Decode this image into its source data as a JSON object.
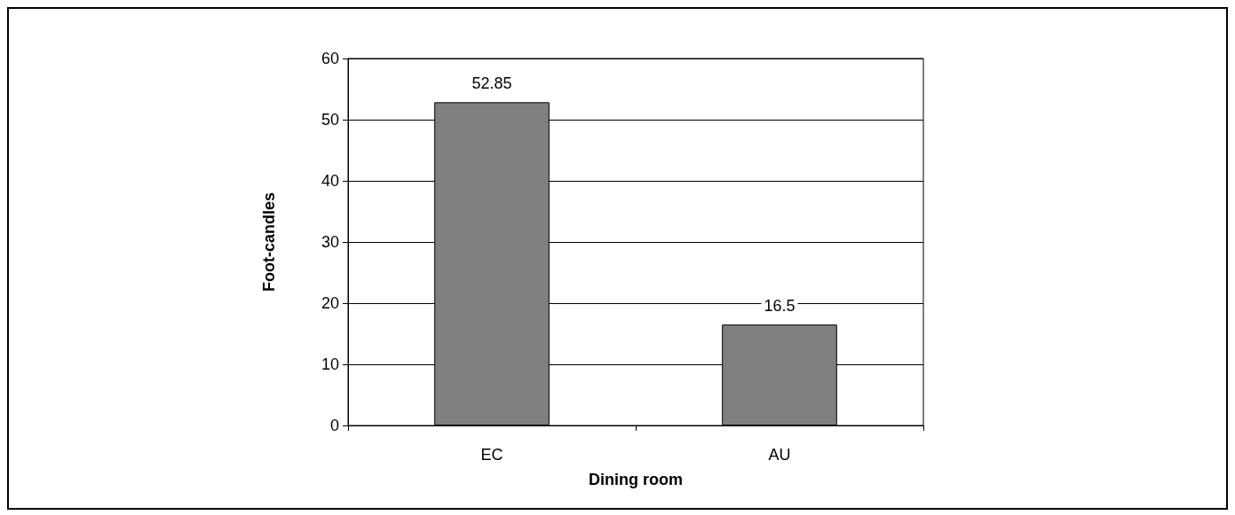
{
  "chart_data": {
    "type": "bar",
    "xlabel": "Dining room",
    "ylabel": "Foot-candles",
    "categories": [
      "EC",
      "AU"
    ],
    "values": [
      52.85,
      16.5
    ],
    "color": "#808080",
    "ylim": [
      0,
      60
    ],
    "yticks": [
      0,
      10,
      20,
      30,
      40,
      50,
      60
    ],
    "grid": "y",
    "data_labels": true
  }
}
